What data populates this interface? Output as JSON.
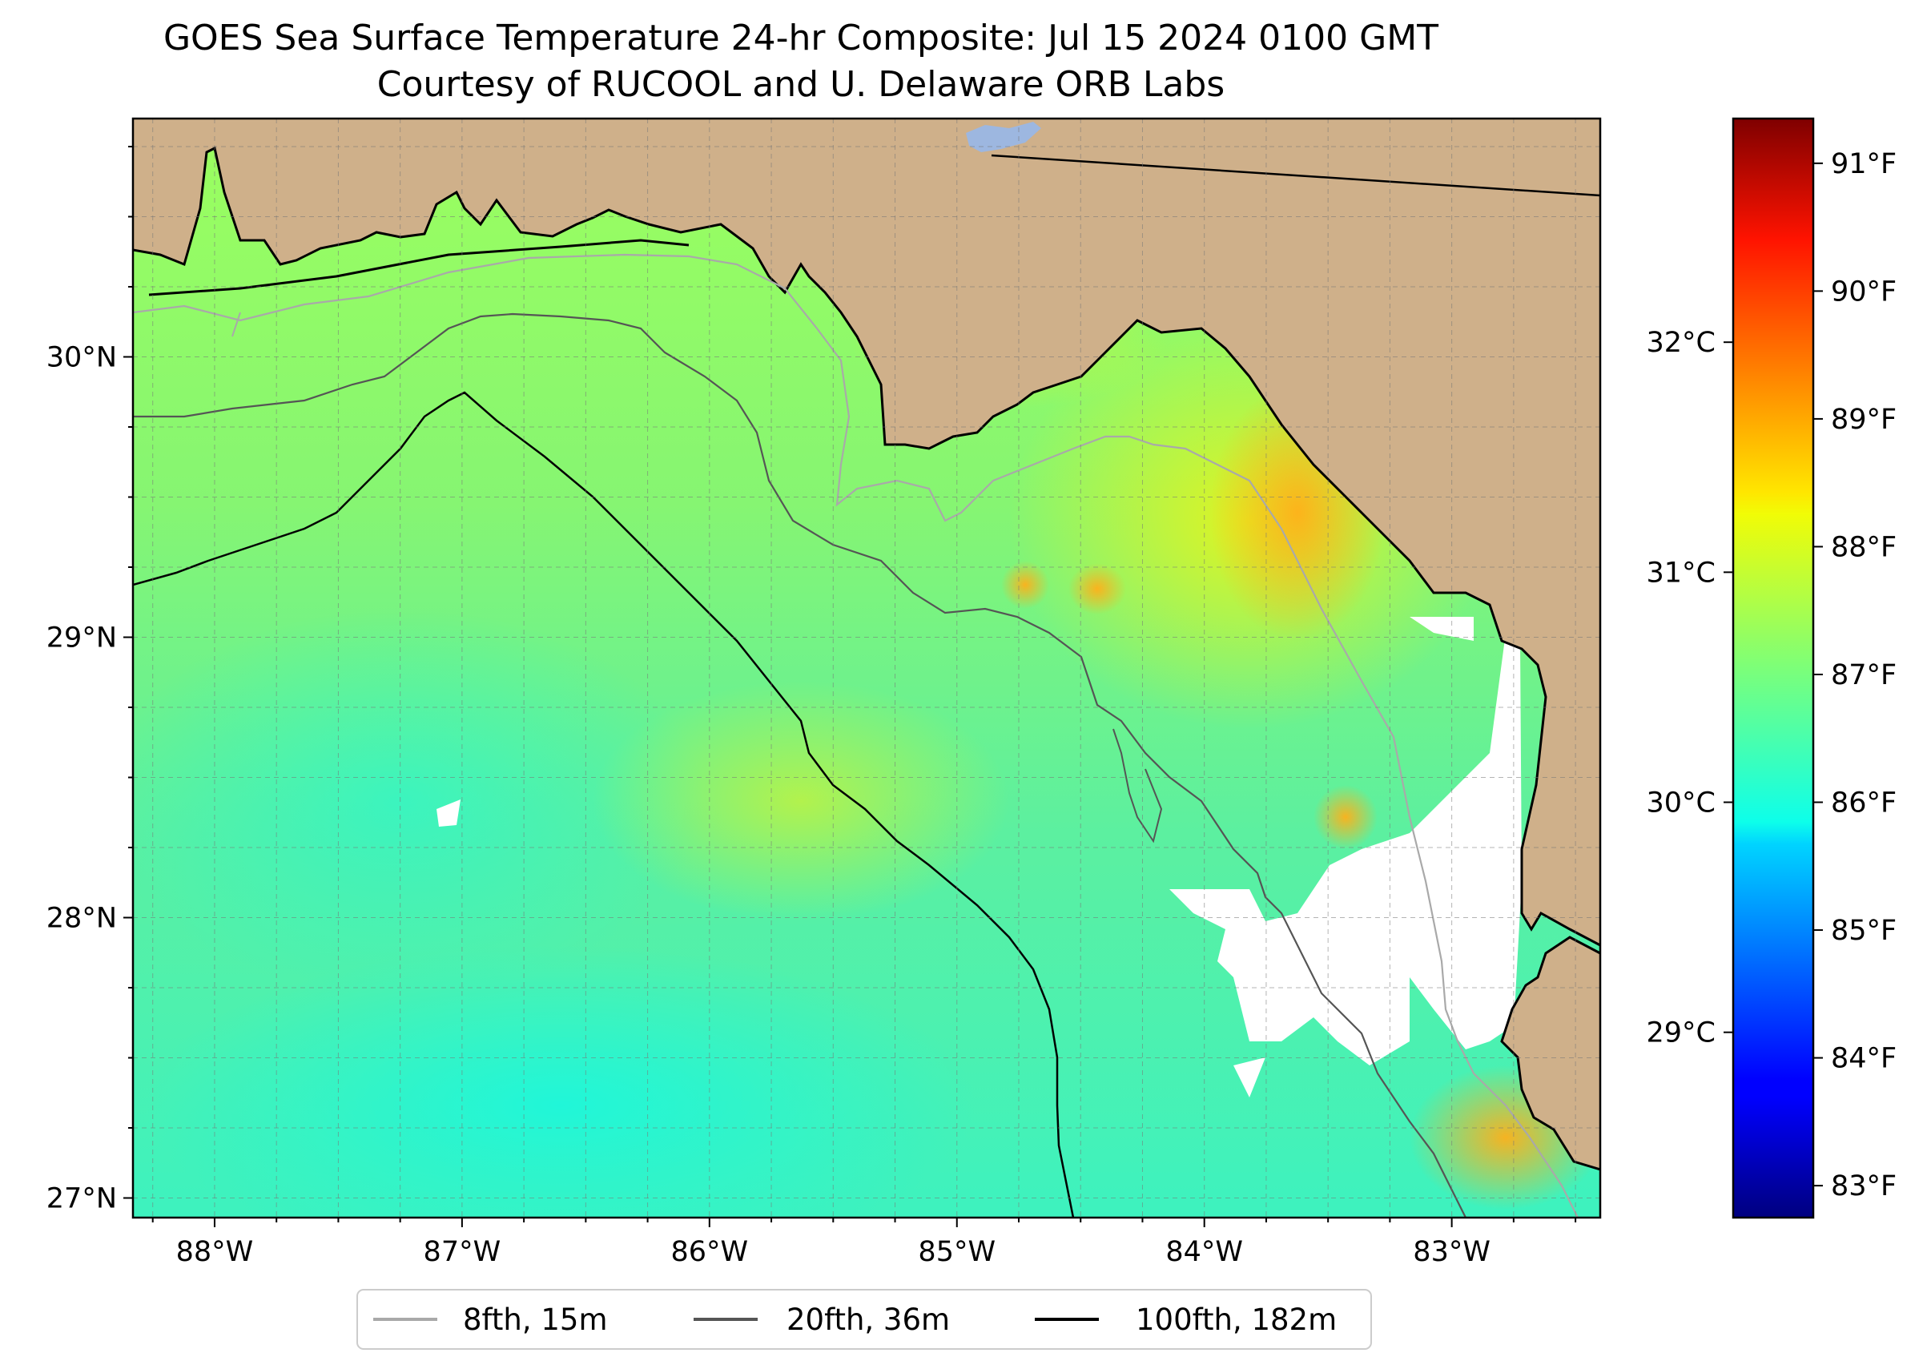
{
  "title": {
    "line1": "GOES Sea Surface Temperature 24-hr Composite: Jul 15 2024 0100 GMT",
    "line2": "Courtesy of RUCOOL and U. Delaware ORB Labs"
  },
  "map": {
    "lon_range": [
      -88.33,
      -82.4
    ],
    "lat_range": [
      26.93,
      30.85
    ],
    "lon_ticks": [
      {
        "value": -88,
        "label": "88°W"
      },
      {
        "value": -87,
        "label": "87°W"
      },
      {
        "value": -86,
        "label": "86°W"
      },
      {
        "value": -85,
        "label": "85°W"
      },
      {
        "value": -84,
        "label": "84°W"
      },
      {
        "value": -83,
        "label": "83°W"
      }
    ],
    "lat_ticks": [
      {
        "value": 30,
        "label": "30°N"
      },
      {
        "value": 29,
        "label": "29°N"
      },
      {
        "value": 28,
        "label": "28°N"
      },
      {
        "value": 27,
        "label": "27°N"
      }
    ],
    "grid_step_deg": 0.25,
    "colors": {
      "land": "#cfb08a",
      "water_fill": "#8ef06c",
      "cloud": "#ffffff",
      "inland_water": "#9db7e0"
    }
  },
  "colorbar": {
    "celsius_ticks": [
      {
        "value": 32,
        "label": "32°C"
      },
      {
        "value": 31,
        "label": "31°C"
      },
      {
        "value": 30,
        "label": "30°C"
      },
      {
        "value": 29,
        "label": "29°C"
      }
    ],
    "fahrenheit_ticks": [
      {
        "value": 91,
        "label": "91°F"
      },
      {
        "value": 90,
        "label": "90°F"
      },
      {
        "value": 89,
        "label": "89°F"
      },
      {
        "value": 88,
        "label": "88°F"
      },
      {
        "value": 87,
        "label": "87°F"
      },
      {
        "value": 86,
        "label": "86°F"
      },
      {
        "value": 85,
        "label": "85°F"
      },
      {
        "value": 84,
        "label": "84°F"
      },
      {
        "value": 83,
        "label": "83°F"
      }
    ],
    "colormap": "jet"
  },
  "legend": {
    "entries": [
      {
        "label": "8fth, 15m",
        "color": "#a9a9a9"
      },
      {
        "label": "20fth, 36m",
        "color": "#555555"
      },
      {
        "label": "100fth, 182m",
        "color": "#000000"
      }
    ]
  }
}
